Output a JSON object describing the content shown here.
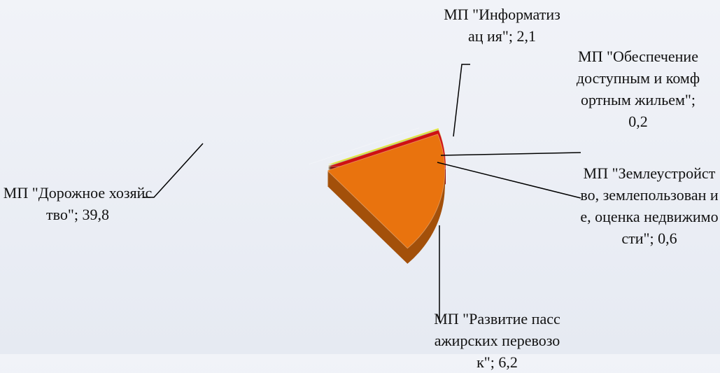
{
  "chart_data": {
    "type": "pie",
    "categories": [
      "МП \"Информатизация\"",
      "МП \"Обеспечение доступным и комфортным жильем\"",
      "МП \"Землеустройство, землепользование, оценка недвижимости\"",
      "МП \"Развитие пассажирских перевозок\"",
      "МП \"Дорожное хозяйство\""
    ],
    "values": [
      2.1,
      0.2,
      0.6,
      6.2,
      39.8
    ],
    "value_labels": [
      "МП \"Информатизац ия\"; 2,1",
      "МП \"Обеспечение доступным и комфортным жильем\"; 0,2",
      "МП \"Землеустройст во, землепользован ие, оценка недвижимости\"; 0,6",
      "МП \"Развитие пассажирских перевозок\"; 6,2",
      "МП \"Дорожное хозяйство\"; 39,8"
    ],
    "colors": [
      "#e3e22c",
      "#5fae4a",
      "#cf1111",
      "#e9730e",
      "#36a9dd"
    ]
  }
}
